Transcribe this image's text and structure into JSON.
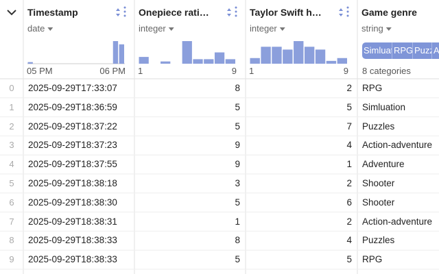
{
  "columns": [
    {
      "title": "Timestamp",
      "dtype": "date",
      "histogram": [
        1,
        0,
        0,
        0,
        0,
        0,
        0,
        0,
        0,
        0,
        0,
        0,
        0,
        0,
        14,
        12
      ],
      "axis_labels": [
        "05 PM",
        "06 PM"
      ]
    },
    {
      "title": "Onepiece rati…",
      "dtype": "integer",
      "histogram": [
        3,
        0,
        1,
        0,
        10,
        2,
        2,
        5,
        2
      ],
      "axis_labels": [
        "1",
        "9"
      ]
    },
    {
      "title": "Taylor Swift h…",
      "dtype": "integer",
      "histogram": [
        2,
        6,
        6,
        5,
        8,
        6,
        5,
        1,
        2
      ],
      "axis_labels": [
        "1",
        "9"
      ]
    },
    {
      "title": "Game genre",
      "dtype": "string",
      "category_chips": [
        "Simluation",
        "RPG",
        "Puzzles",
        "Action-adventure"
      ],
      "summary": "8 categories"
    }
  ],
  "rows": [
    [
      0,
      "2025-09-29T17:33:07",
      8,
      2,
      "RPG"
    ],
    [
      1,
      "2025-09-29T18:36:59",
      5,
      5,
      "Simluation"
    ],
    [
      2,
      "2025-09-29T18:37:22",
      5,
      7,
      "Puzzles"
    ],
    [
      3,
      "2025-09-29T18:37:23",
      9,
      4,
      "Action-adventure"
    ],
    [
      4,
      "2025-09-29T18:37:55",
      9,
      1,
      "Adventure"
    ],
    [
      5,
      "2025-09-29T18:38:18",
      3,
      2,
      "Shooter"
    ],
    [
      6,
      "2025-09-29T18:38:30",
      5,
      6,
      "Shooter"
    ],
    [
      7,
      "2025-09-29T18:38:31",
      1,
      2,
      "Action-adventure"
    ],
    [
      8,
      "2025-09-29T18:38:33",
      8,
      4,
      "Puzzles"
    ],
    [
      9,
      "2025-09-29T18:38:33",
      5,
      5,
      "RPG"
    ]
  ]
}
